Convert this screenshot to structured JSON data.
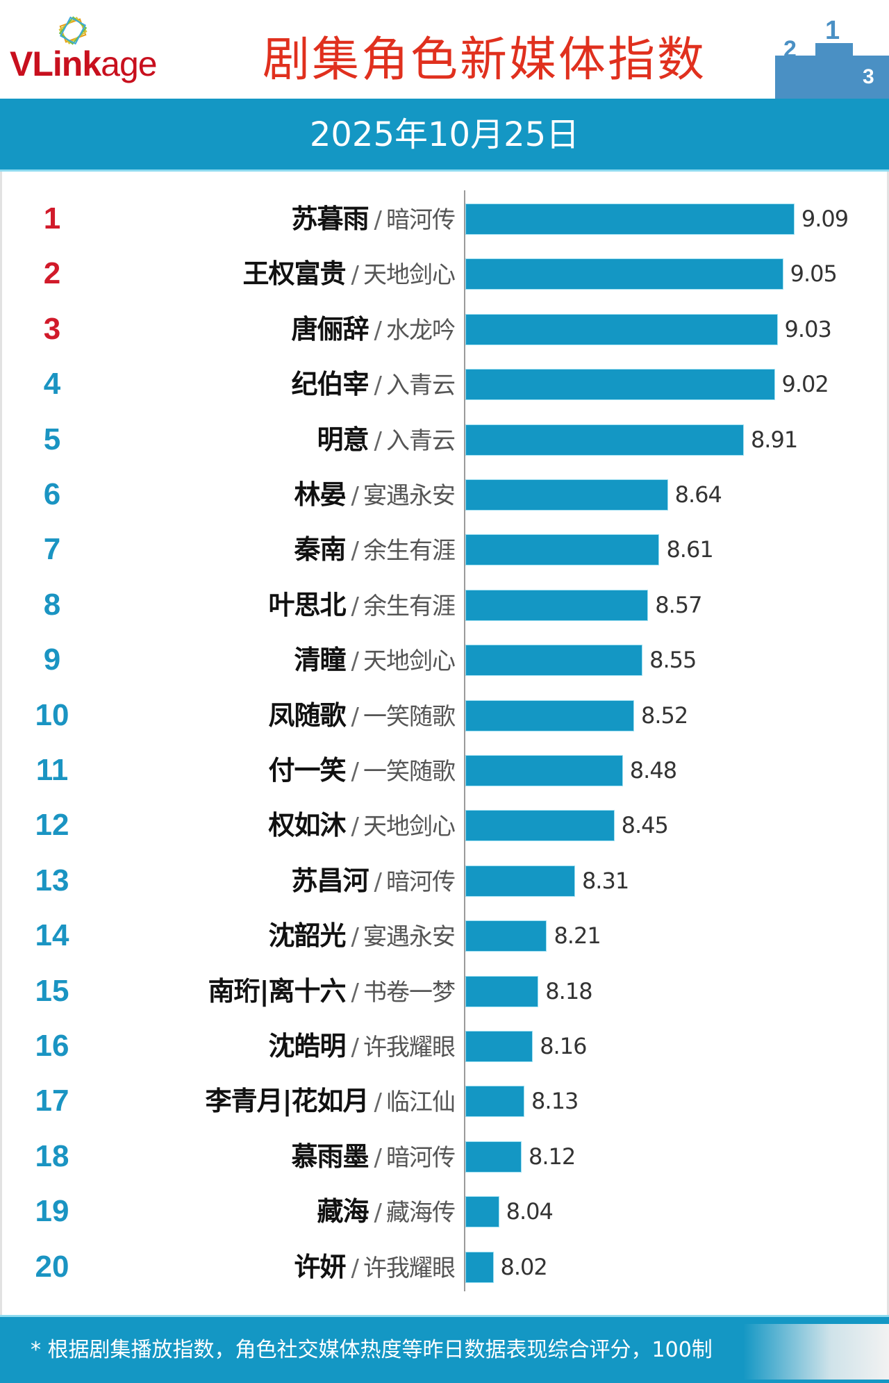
{
  "header": {
    "logo_bold": "VLink",
    "logo_light": "age",
    "title": "剧集角色新媒体指数",
    "podium_icon": "podium-icon"
  },
  "date_bar": {
    "date": "2025年10月25日"
  },
  "footer": {
    "note": "* 根据剧集播放指数，角色社交媒体热度等昨日数据表现综合评分，100制"
  },
  "colors": {
    "bar": "#1497c4",
    "rank_top": "#d11a2a",
    "rank": "#1a94c2",
    "title": "#e0301e",
    "logo": "#c8101e"
  },
  "rows": [
    {
      "rank": "1",
      "name": "苏暮雨",
      "drama": "暗河传",
      "value": "9.09"
    },
    {
      "rank": "2",
      "name": "王权富贵",
      "drama": "天地剑心",
      "value": "9.05"
    },
    {
      "rank": "3",
      "name": "唐俪辞",
      "drama": "水龙吟",
      "value": "9.03"
    },
    {
      "rank": "4",
      "name": "纪伯宰",
      "drama": "入青云",
      "value": "9.02"
    },
    {
      "rank": "5",
      "name": "明意",
      "drama": "入青云",
      "value": "8.91"
    },
    {
      "rank": "6",
      "name": "林晏",
      "drama": "宴遇永安",
      "value": "8.64"
    },
    {
      "rank": "7",
      "name": "秦南",
      "drama": "余生有涯",
      "value": "8.61"
    },
    {
      "rank": "8",
      "name": "叶思北",
      "drama": "余生有涯",
      "value": "8.57"
    },
    {
      "rank": "9",
      "name": "清瞳",
      "drama": "天地剑心",
      "value": "8.55"
    },
    {
      "rank": "10",
      "name": "凤随歌",
      "drama": "一笑随歌",
      "value": "8.52"
    },
    {
      "rank": "11",
      "name": "付一笑",
      "drama": "一笑随歌",
      "value": "8.48"
    },
    {
      "rank": "12",
      "name": "权如沐",
      "drama": "天地剑心",
      "value": "8.45"
    },
    {
      "rank": "13",
      "name": "苏昌河",
      "drama": "暗河传",
      "value": "8.31"
    },
    {
      "rank": "14",
      "name": "沈韶光",
      "drama": "宴遇永安",
      "value": "8.21"
    },
    {
      "rank": "15",
      "name": "南珩|离十六",
      "drama": "书卷一梦",
      "value": "8.18"
    },
    {
      "rank": "16",
      "name": "沈皓明",
      "drama": "许我耀眼",
      "value": "8.16"
    },
    {
      "rank": "17",
      "name": "李青月|花如月",
      "drama": "临江仙",
      "value": "8.13"
    },
    {
      "rank": "18",
      "name": "慕雨墨",
      "drama": "暗河传",
      "value": "8.12"
    },
    {
      "rank": "19",
      "name": "藏海",
      "drama": "藏海传",
      "value": "8.04"
    },
    {
      "rank": "20",
      "name": "许妍",
      "drama": "许我耀眼",
      "value": "8.02"
    }
  ],
  "chart_data": {
    "type": "bar",
    "orientation": "horizontal",
    "title": "剧集角色新媒体指数",
    "subtitle": "2025年10月25日",
    "xlabel": "",
    "ylabel": "",
    "categories": [
      "苏暮雨 / 暗河传",
      "王权富贵 / 天地剑心",
      "唐俪辞 / 水龙吟",
      "纪伯宰 / 入青云",
      "明意 / 入青云",
      "林晏 / 宴遇永安",
      "秦南 / 余生有涯",
      "叶思北 / 余生有涯",
      "清瞳 / 天地剑心",
      "凤随歌 / 一笑随歌",
      "付一笑 / 一笑随歌",
      "权如沐 / 天地剑心",
      "苏昌河 / 暗河传",
      "沈韶光 / 宴遇永安",
      "南珩|离十六 / 书卷一梦",
      "沈皓明 / 许我耀眼",
      "李青月|花如月 / 临江仙",
      "慕雨墨 / 暗河传",
      "藏海 / 藏海传",
      "许妍 / 许我耀眼"
    ],
    "values": [
      9.09,
      9.05,
      9.03,
      9.02,
      8.91,
      8.64,
      8.61,
      8.57,
      8.55,
      8.52,
      8.48,
      8.45,
      8.31,
      8.21,
      8.18,
      8.16,
      8.13,
      8.12,
      8.04,
      8.02
    ],
    "xlim": [
      7.92,
      9.2
    ],
    "grid": false,
    "legend": "none",
    "data_labels": true,
    "annotation": "* 根据剧集播放指数，角色社交媒体热度等昨日数据表现综合评分，100制"
  }
}
